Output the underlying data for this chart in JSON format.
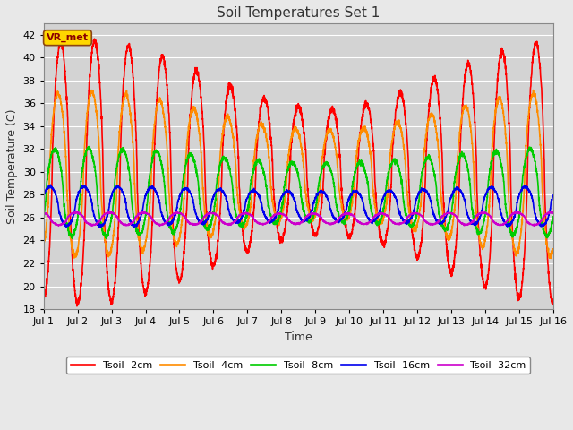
{
  "title": "Soil Temperatures Set 1",
  "xlabel": "Time",
  "ylabel": "Soil Temperature (C)",
  "ylim": [
    18,
    43
  ],
  "yticks": [
    18,
    20,
    22,
    24,
    26,
    28,
    30,
    32,
    34,
    36,
    38,
    40,
    42
  ],
  "xlim": [
    0,
    360
  ],
  "xtick_positions": [
    0,
    24,
    48,
    72,
    96,
    120,
    144,
    168,
    192,
    216,
    240,
    264,
    288,
    312,
    336,
    360
  ],
  "xtick_labels": [
    "Jul 1",
    "Jul 2",
    "Jul 3",
    "Jul 4",
    "Jul 5",
    "Jul 6",
    "Jul 7",
    "Jul 8",
    "Jul 9",
    "Jul 10",
    "Jul 11",
    "Jul 12",
    "Jul 13",
    "Jul 14",
    "Jul 15",
    "Jul 16"
  ],
  "annotation_text": "VR_met",
  "series": [
    {
      "label": "Tsoil -2cm",
      "color": "#FF0000",
      "lw": 1.2
    },
    {
      "label": "Tsoil -4cm",
      "color": "#FF8C00",
      "lw": 1.2
    },
    {
      "label": "Tsoil -8cm",
      "color": "#00CC00",
      "lw": 1.2
    },
    {
      "label": "Tsoil -16cm",
      "color": "#0000EE",
      "lw": 1.2
    },
    {
      "label": "Tsoil -32cm",
      "color": "#CC00CC",
      "lw": 1.2
    }
  ],
  "bg_color": "#E8E8E8",
  "plot_bg_color": "#D3D3D3",
  "grid_color": "#FFFFFF",
  "title_fontsize": 11,
  "label_fontsize": 9,
  "tick_fontsize": 8
}
